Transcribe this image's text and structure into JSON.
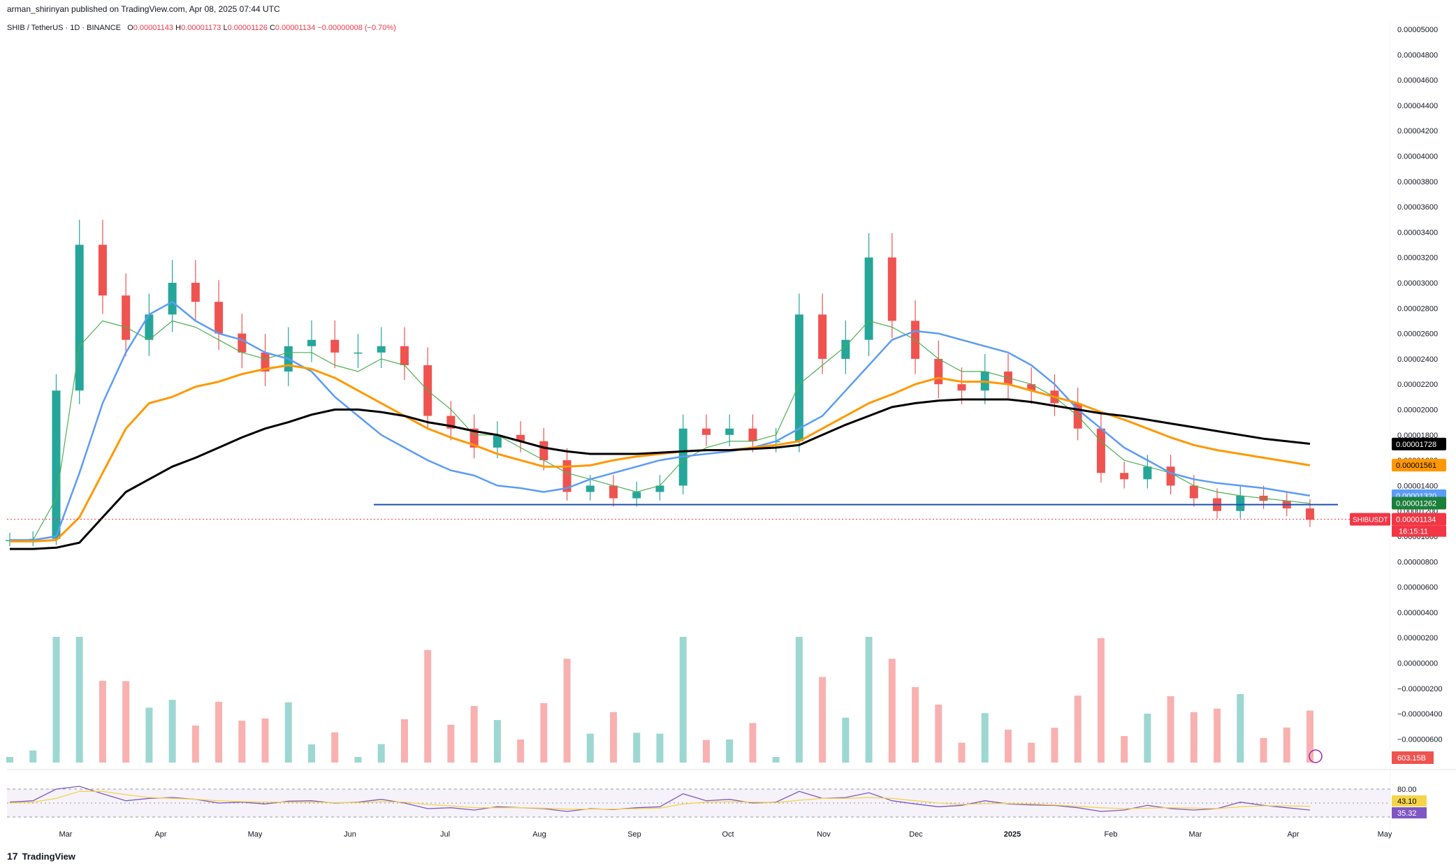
{
  "publisher": "arman_shirinyan published on TradingView.com, Apr 08, 2025 07:44 UTC",
  "legend": {
    "symbol": "SHIB / TetherUS · 1D · BINANCE",
    "o_label": "O",
    "o": "0.00001143",
    "h_label": "H",
    "h": "0.00001173",
    "l_label": "L",
    "l": "0.00001126",
    "c_label": "C",
    "c": "0.00001134",
    "change": "−0.00000008 (−0.70%)"
  },
  "footer": {
    "logo_text": "TradingView",
    "logo_mark": "17"
  },
  "colors": {
    "up": "#26a69a",
    "down": "#ef5350",
    "ma20": "#4caf50",
    "ma50": "#5b9cf6",
    "ma100": "#ff9800",
    "ma200": "#000000",
    "support": "#1e4fb4",
    "rsi": "#7e57c2",
    "rsi_ma": "#f5d44a"
  },
  "price_axis": [
    "0.00005000",
    "0.00004800",
    "0.00004600",
    "0.00004400",
    "0.00004200",
    "0.00004000",
    "0.00003800",
    "0.00003600",
    "0.00003400",
    "0.00003200",
    "0.00003000",
    "0.00002800",
    "0.00002600",
    "0.00002400",
    "0.00002200",
    "0.00002000",
    "0.00001800",
    "0.00001600",
    "0.00001400",
    "0.00001200",
    "0.00001000",
    "0.00000800",
    "0.00000600",
    "0.00000400",
    "0.00000200",
    "0.00000000",
    "−0.00000200",
    "−0.00000400",
    "−0.00000600"
  ],
  "price_tags": [
    {
      "label": "0.00001728",
      "bg": "#000000",
      "fg": "#ffffff"
    },
    {
      "label": "0.00001561",
      "bg": "#ff9800",
      "fg": "#000000"
    },
    {
      "label": "0.00001320",
      "bg": "#5b9cf6",
      "fg": "#ffffff"
    },
    {
      "label": "0.00001262",
      "bg": "#1b7f3a",
      "fg": "#ffffff"
    },
    {
      "label": "0.00001134",
      "bg": "#f23645",
      "fg": "#ffffff"
    }
  ],
  "countdown": "16:15:11",
  "symbol_tag": "SHIBUSDT",
  "volume_tag": "603.15B",
  "rsi_tags": [
    "43.10",
    "35.32"
  ],
  "rsi_axis": [
    "80.00"
  ],
  "time_axis": [
    "Mar",
    "Apr",
    "May",
    "Jun",
    "Jul",
    "Aug",
    "Sep",
    "Oct",
    "Nov",
    "Dec",
    "2025",
    "Feb",
    "Mar",
    "Apr",
    "May"
  ],
  "chart_data": {
    "type": "candlestick",
    "title": "SHIB / TetherUS · 1D · BINANCE",
    "xlabel": "",
    "ylabel": "",
    "ylim": [
      -6e-06,
      5e-05
    ],
    "grid": false,
    "x_range": [
      "2024-02-01",
      "2025-05-01"
    ],
    "last": {
      "open": 1.143e-05,
      "high": 1.173e-05,
      "low": 1.126e-05,
      "close": 1.134e-05,
      "change": -8e-08,
      "change_pct": -0.7
    },
    "support_level": 1.25e-05,
    "series": [
      {
        "values": [
          9.7e-06,
          9.8e-06,
          2.15e-05,
          3.3e-05,
          2.9e-05,
          2.55e-05,
          2.75e-05,
          3e-05,
          2.85e-05,
          2.6e-05,
          2.45e-05,
          2.3e-05,
          2.5e-05,
          2.55e-05,
          2.45e-05,
          2.45e-05,
          2.5e-05,
          2.35e-05,
          1.95e-05,
          1.85e-05,
          1.7e-05,
          1.8e-05,
          1.75e-05,
          1.6e-05,
          1.35e-05,
          1.4e-05,
          1.3e-05,
          1.35e-05,
          1.4e-05,
          1.85e-05,
          1.8e-05,
          1.85e-05,
          1.75e-05,
          1.75e-05,
          2.75e-05,
          2.4e-05,
          2.55e-05,
          3.2e-05,
          2.7e-05,
          2.4e-05,
          2.2e-05,
          2.15e-05,
          2.3e-05,
          2.2e-05,
          2.15e-05,
          2.05e-05,
          1.85e-05,
          1.5e-05,
          1.45e-05,
          1.55e-05,
          1.4e-05,
          1.3e-05,
          1.2e-05,
          1.32e-05,
          1.28e-05,
          1.22e-05,
          1.13e-05
        ]
      },
      {
        "name": "MA 20",
        "values": [
          9.7e-06,
          9.7e-06,
          1.3e-05,
          2.5e-05,
          2.7e-05,
          2.65e-05,
          2.55e-05,
          2.7e-05,
          2.65e-05,
          2.55e-05,
          2.45e-05,
          2.4e-05,
          2.45e-05,
          2.45e-05,
          2.35e-05,
          2.3e-05,
          2.4e-05,
          2.35e-05,
          2.15e-05,
          2e-05,
          1.8e-05,
          1.8e-05,
          1.7e-05,
          1.6e-05,
          1.5e-05,
          1.45e-05,
          1.4e-05,
          1.35e-05,
          1.4e-05,
          1.6e-05,
          1.7e-05,
          1.75e-05,
          1.75e-05,
          1.8e-05,
          2.2e-05,
          2.35e-05,
          2.5e-05,
          2.7e-05,
          2.65e-05,
          2.55e-05,
          2.4e-05,
          2.3e-05,
          2.3e-05,
          2.25e-05,
          2.2e-05,
          2.1e-05,
          1.95e-05,
          1.75e-05,
          1.6e-05,
          1.55e-05,
          1.5e-05,
          1.4e-05,
          1.35e-05,
          1.32e-05,
          1.3e-05,
          1.28e-05,
          1.26e-05
        ]
      },
      {
        "name": "MA 50",
        "values": [
          9.7e-06,
          9.7e-06,
          1e-05,
          1.5e-05,
          2.05e-05,
          2.45e-05,
          2.75e-05,
          2.85e-05,
          2.7e-05,
          2.6e-05,
          2.55e-05,
          2.45e-05,
          2.4e-05,
          2.3e-05,
          2.1e-05,
          1.95e-05,
          1.8e-05,
          1.7e-05,
          1.6e-05,
          1.52e-05,
          1.48e-05,
          1.4e-05,
          1.38e-05,
          1.35e-05,
          1.38e-05,
          1.45e-05,
          1.5e-05,
          1.55e-05,
          1.6e-05,
          1.63e-05,
          1.65e-05,
          1.67e-05,
          1.7e-05,
          1.75e-05,
          1.85e-05,
          1.95e-05,
          2.15e-05,
          2.35e-05,
          2.55e-05,
          2.62e-05,
          2.6e-05,
          2.55e-05,
          2.5e-05,
          2.45e-05,
          2.35e-05,
          2.2e-05,
          2e-05,
          1.85e-05,
          1.7e-05,
          1.6e-05,
          1.5e-05,
          1.45e-05,
          1.42e-05,
          1.4e-05,
          1.38e-05,
          1.35e-05,
          1.32e-05
        ]
      },
      {
        "name": "MA 100",
        "values": [
          9.6e-06,
          9.6e-06,
          9.7e-06,
          1.15e-05,
          1.5e-05,
          1.85e-05,
          2.05e-05,
          2.1e-05,
          2.18e-05,
          2.22e-05,
          2.28e-05,
          2.32e-05,
          2.35e-05,
          2.32e-05,
          2.25e-05,
          2.15e-05,
          2.05e-05,
          1.95e-05,
          1.85e-05,
          1.78e-05,
          1.72e-05,
          1.65e-05,
          1.6e-05,
          1.55e-05,
          1.55e-05,
          1.56e-05,
          1.6e-05,
          1.63e-05,
          1.65e-05,
          1.67e-05,
          1.68e-05,
          1.68e-05,
          1.7e-05,
          1.72e-05,
          1.75e-05,
          1.85e-05,
          1.95e-05,
          2.05e-05,
          2.12e-05,
          2.2e-05,
          2.25e-05,
          2.22e-05,
          2.22e-05,
          2.2e-05,
          2.15e-05,
          2.1e-05,
          2.05e-05,
          1.98e-05,
          1.92e-05,
          1.85e-05,
          1.78e-05,
          1.72e-05,
          1.68e-05,
          1.65e-05,
          1.62e-05,
          1.59e-05,
          1.56e-05
        ]
      },
      {
        "name": "MA 200",
        "values": [
          9e-06,
          9e-06,
          9.1e-06,
          9.5e-06,
          1.15e-05,
          1.35e-05,
          1.45e-05,
          1.55e-05,
          1.62e-05,
          1.7e-05,
          1.78e-05,
          1.85e-05,
          1.9e-05,
          1.96e-05,
          2e-05,
          2e-05,
          1.98e-05,
          1.95e-05,
          1.9e-05,
          1.87e-05,
          1.83e-05,
          1.8e-05,
          1.75e-05,
          1.7e-05,
          1.67e-05,
          1.65e-05,
          1.65e-05,
          1.65e-05,
          1.66e-05,
          1.67e-05,
          1.68e-05,
          1.68e-05,
          1.69e-05,
          1.7e-05,
          1.72e-05,
          1.8e-05,
          1.88e-05,
          1.95e-05,
          2.02e-05,
          2.05e-05,
          2.07e-05,
          2.08e-05,
          2.08e-05,
          2.08e-05,
          2.06e-05,
          2.03e-05,
          2e-05,
          1.97e-05,
          1.95e-05,
          1.92e-05,
          1.89e-05,
          1.86e-05,
          1.83e-05,
          1.8e-05,
          1.77e-05,
          1.75e-05,
          1.73e-05
        ]
      }
    ],
    "rsi_series": [
      {
        "values": [
          52,
          55,
          80,
          86,
          70,
          55,
          60,
          62,
          58,
          50,
          52,
          48,
          54,
          55,
          50,
          52,
          58,
          50,
          38,
          40,
          35,
          42,
          40,
          38,
          32,
          38,
          36,
          40,
          42,
          70,
          55,
          58,
          50,
          52,
          75,
          60,
          62,
          72,
          55,
          48,
          42,
          45,
          55,
          48,
          46,
          45,
          40,
          32,
          35,
          45,
          38,
          35,
          38,
          52,
          45,
          40,
          35
        ]
      },
      {
        "values": [
          50,
          52,
          60,
          75,
          75,
          68,
          62,
          60,
          58,
          55,
          53,
          52,
          52,
          52,
          51,
          51,
          53,
          52,
          47,
          44,
          40,
          40,
          40,
          39,
          37,
          37,
          37,
          38,
          39,
          48,
          52,
          53,
          52,
          51,
          56,
          60,
          60,
          62,
          60,
          55,
          50,
          47,
          49,
          49,
          48,
          46,
          43,
          40,
          38,
          39,
          40,
          39,
          38,
          42,
          44,
          44,
          43
        ]
      }
    ]
  }
}
